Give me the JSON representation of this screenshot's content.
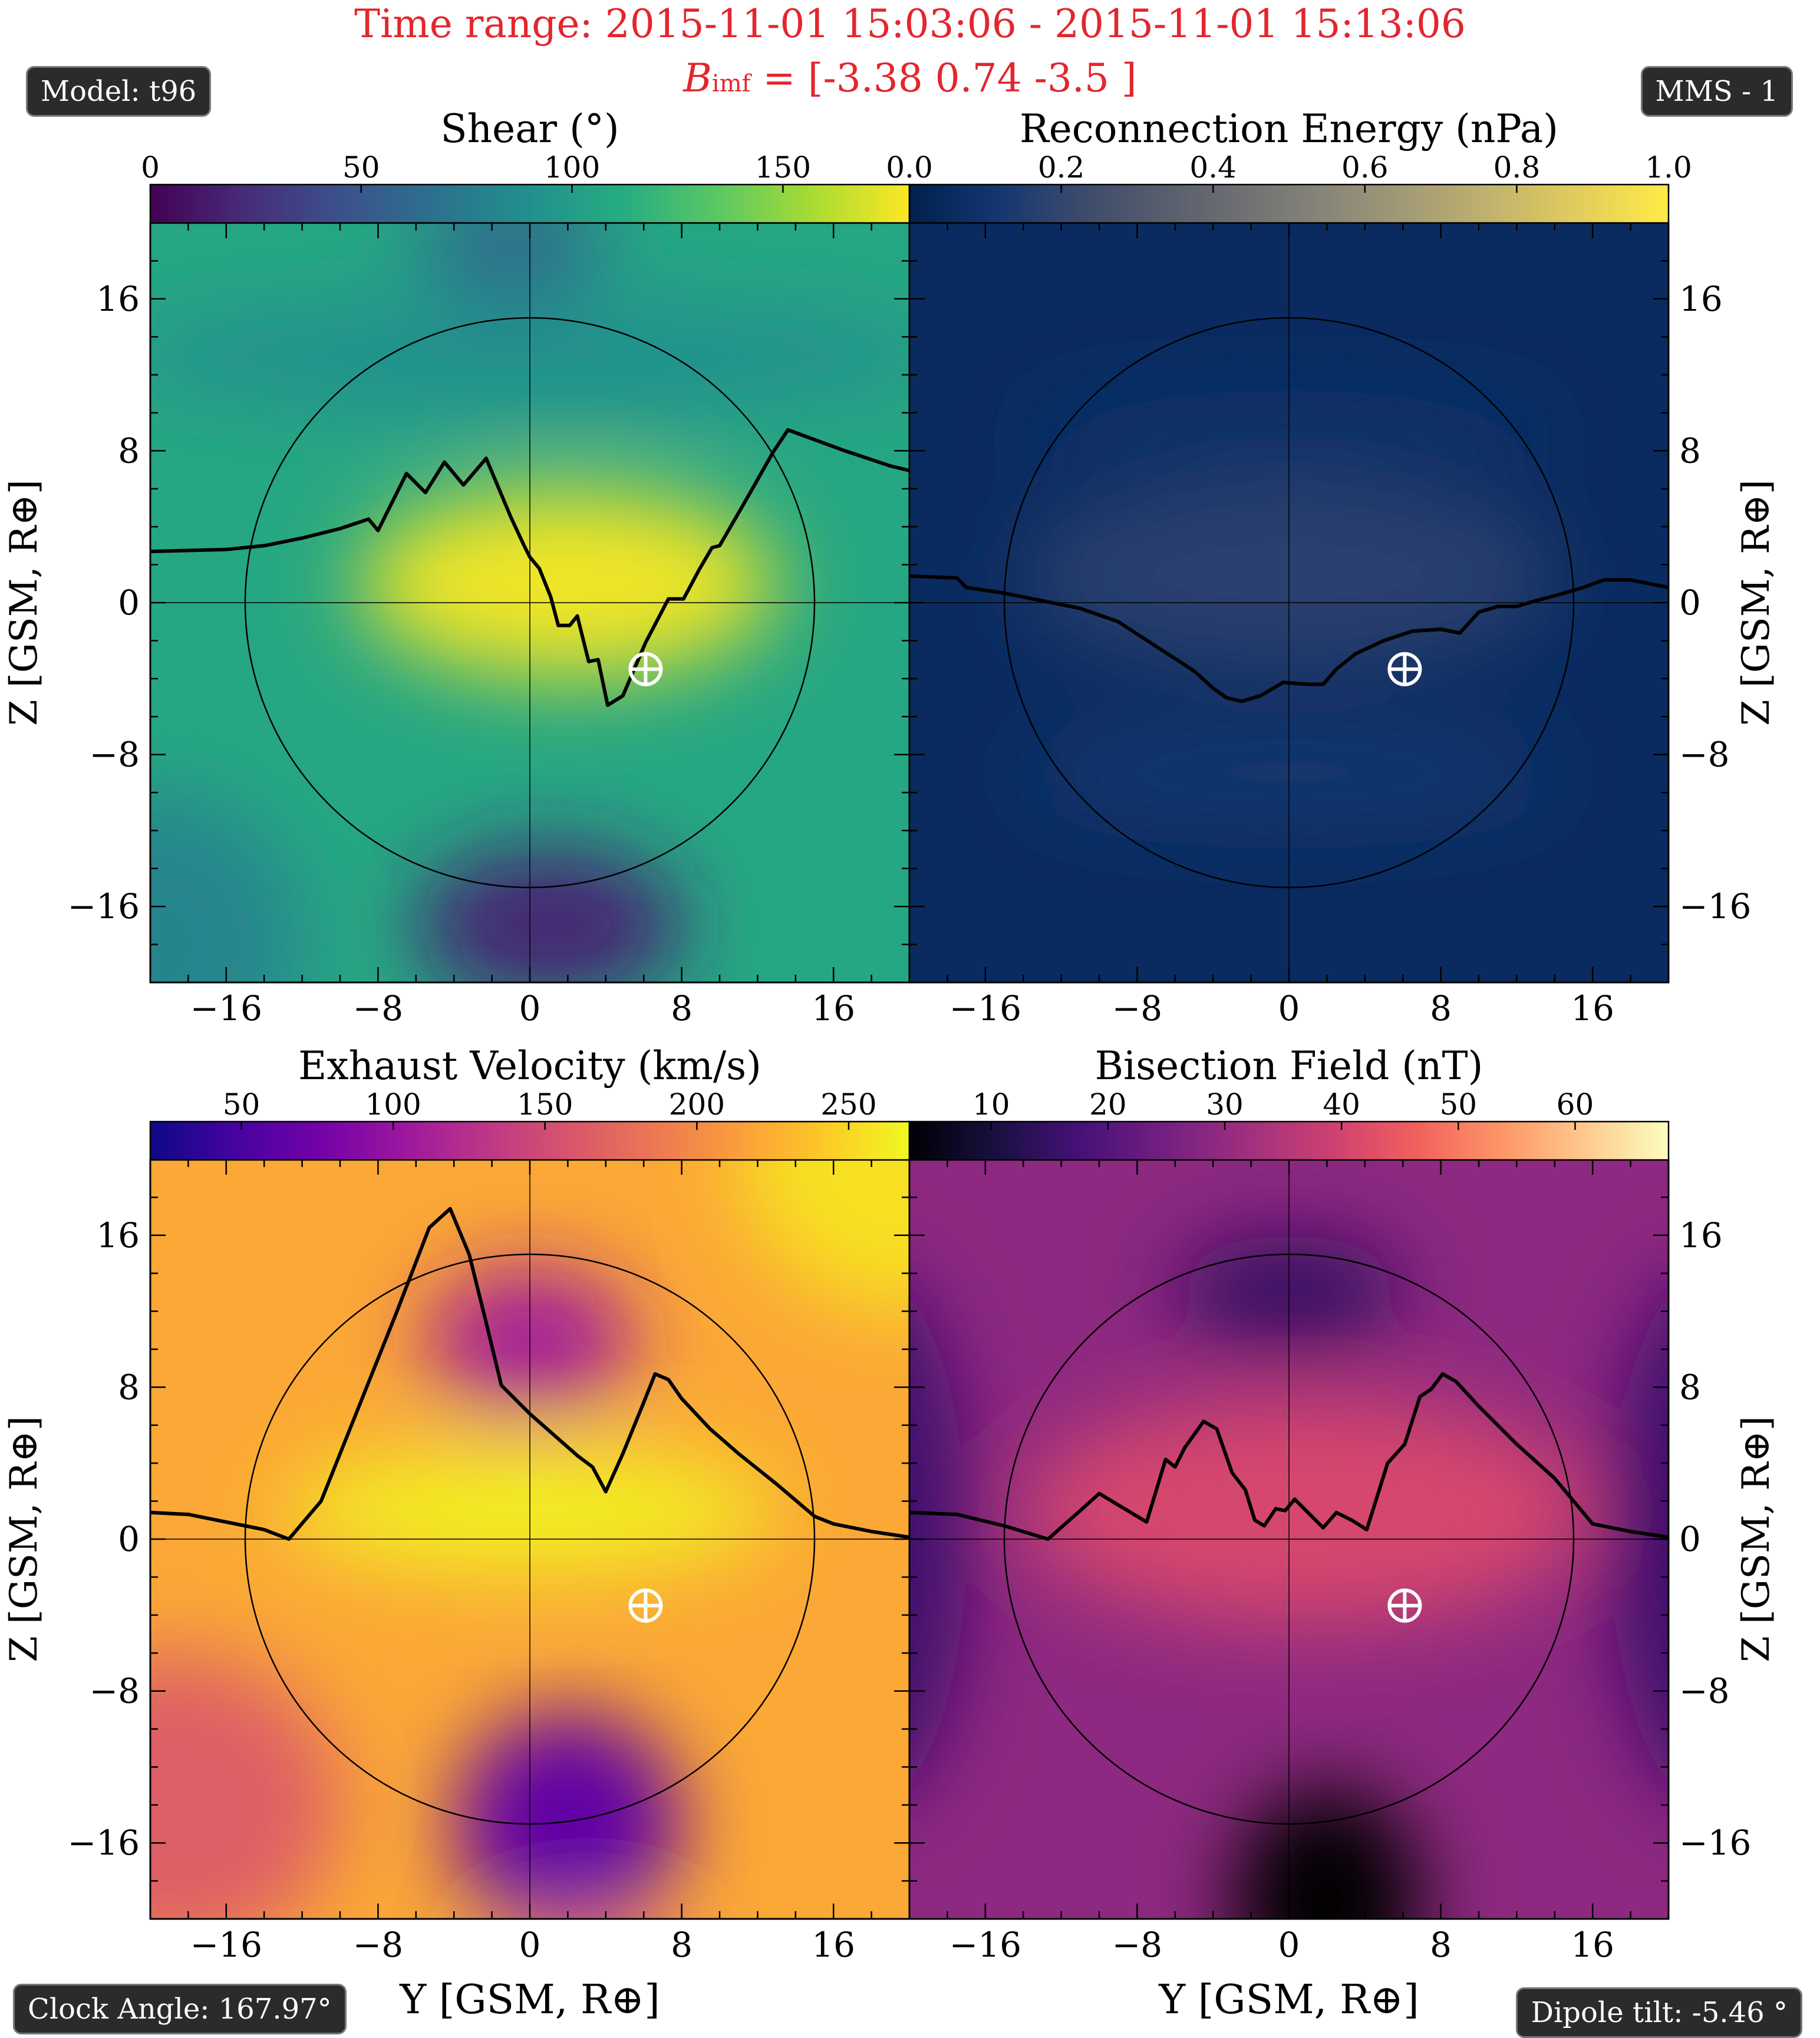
{
  "header": {
    "title_prefix": "Time range:",
    "time_start": "2015-11-01 15:03:06",
    "time_separator": "-",
    "time_end": "2015-11-01 15:13:06",
    "bimf_symbol": "B",
    "bimf_subscript": "imf",
    "bimf_value": "= [-3.38 0.74 -3.5 ]"
  },
  "badges": {
    "model": "Model: t96",
    "spacecraft": "MMS - 1",
    "clock_angle": "Clock Angle: 167.97°",
    "dipole_tilt": "Dipole tilt: -5.46 °"
  },
  "colors": {
    "title": "#e3262d",
    "badge_bg": "#2b2b2b",
    "line": "#000000",
    "marker": "#ffffff"
  },
  "chart_data": [
    {
      "type": "heatmap",
      "colorbar_label": "Shear (°)",
      "colormap": "viridis",
      "colorbar_range": [
        0,
        180
      ],
      "colorbar_ticks": [
        0,
        50,
        100,
        150
      ],
      "xlabel": "Y [GSM, R⊕]",
      "ylabel": "Z [GSM, R⊕]",
      "xlim": [
        -20,
        20
      ],
      "ylim": [
        -20,
        20
      ],
      "xticks": [
        -16,
        -8,
        0,
        8,
        16
      ],
      "yticks": [
        -16,
        -8,
        0,
        8,
        16
      ],
      "reference_circle_radius": 15,
      "spacecraft_marker": {
        "y": 6.1,
        "z": -3.5,
        "symbol": "⊕"
      },
      "reconnection_line": [
        [
          -20,
          2.7
        ],
        [
          -16,
          2.8
        ],
        [
          -14,
          3.0
        ],
        [
          -12,
          3.4
        ],
        [
          -10,
          3.9
        ],
        [
          -8.5,
          4.4
        ],
        [
          -8,
          3.8
        ],
        [
          -6.5,
          6.8
        ],
        [
          -5.5,
          5.8
        ],
        [
          -4.5,
          7.4
        ],
        [
          -3.5,
          6.2
        ],
        [
          -2.3,
          7.6
        ],
        [
          -1,
          4.5
        ],
        [
          -0.3,
          3.0
        ],
        [
          0,
          2.4
        ],
        [
          0.5,
          1.8
        ],
        [
          1.1,
          0.3
        ],
        [
          1.5,
          -1.2
        ],
        [
          2.1,
          -1.2
        ],
        [
          2.5,
          -0.7
        ],
        [
          3.1,
          -3.1
        ],
        [
          3.6,
          -3.0
        ],
        [
          4.1,
          -5.4
        ],
        [
          4.9,
          -4.9
        ],
        [
          6.1,
          -2.1
        ],
        [
          7.3,
          0.2
        ],
        [
          8.1,
          0.2
        ],
        [
          8.9,
          1.7
        ],
        [
          9.6,
          2.9
        ],
        [
          10,
          3.0
        ],
        [
          11.5,
          5.6
        ],
        [
          12.8,
          7.9
        ],
        [
          13.6,
          9.1
        ],
        [
          16.6,
          8.0
        ],
        [
          19,
          7.2
        ],
        [
          21.1,
          6.7
        ],
        [
          21.5,
          6.1
        ],
        [
          25,
          5.4
        ]
      ]
    },
    {
      "type": "heatmap",
      "colorbar_label": "Reconnection Energy (nPa)",
      "colormap": "cividis",
      "colorbar_range": [
        0.0,
        1.0
      ],
      "colorbar_ticks": [
        0.0,
        0.2,
        0.4,
        0.6,
        0.8,
        1.0
      ],
      "xlabel": "Y [GSM, R⊕]",
      "ylabel": "Z [GSM, R⊕]",
      "xlim": [
        -20,
        20
      ],
      "ylim": [
        -20,
        20
      ],
      "xticks": [
        -16,
        -8,
        0,
        8,
        16
      ],
      "yticks": [
        -16,
        -8,
        0,
        8,
        16
      ],
      "reference_circle_radius": 15,
      "spacecraft_marker": {
        "y": 6.1,
        "z": -3.5,
        "symbol": "⊕"
      },
      "reconnection_line": [
        [
          -20,
          1.4
        ],
        [
          -17.5,
          1.3
        ],
        [
          -17,
          0.8
        ],
        [
          -15,
          0.5
        ],
        [
          -13,
          0.1
        ],
        [
          -11,
          -0.3
        ],
        [
          -9,
          -1.0
        ],
        [
          -7,
          -2.3
        ],
        [
          -5,
          -3.6
        ],
        [
          -4,
          -4.5
        ],
        [
          -3.3,
          -5.0
        ],
        [
          -2.5,
          -5.2
        ],
        [
          -1.5,
          -4.9
        ],
        [
          -0.3,
          -4.2
        ],
        [
          1,
          -4.3
        ],
        [
          1.8,
          -4.3
        ],
        [
          2.5,
          -3.5
        ],
        [
          3.5,
          -2.7
        ],
        [
          5,
          -2.0
        ],
        [
          6.5,
          -1.5
        ],
        [
          8,
          -1.4
        ],
        [
          9,
          -1.6
        ],
        [
          10,
          -0.5
        ],
        [
          11,
          -0.2
        ],
        [
          12,
          -0.2
        ],
        [
          13,
          0.1
        ],
        [
          14.5,
          0.5
        ],
        [
          15.5,
          0.8
        ],
        [
          16.6,
          1.2
        ],
        [
          18,
          1.2
        ],
        [
          20,
          0.8
        ],
        [
          22,
          0.3
        ],
        [
          24,
          -0.2
        ],
        [
          25,
          -0.7
        ],
        [
          26,
          -0.7
        ]
      ]
    },
    {
      "type": "heatmap",
      "colorbar_label": "Exhaust Velocity (km/s)",
      "colormap": "plasma",
      "colorbar_range": [
        20,
        270
      ],
      "colorbar_ticks": [
        50,
        100,
        150,
        200,
        250
      ],
      "xlabel": "Y [GSM, R⊕]",
      "ylabel": "Z [GSM, R⊕]",
      "xlim": [
        -20,
        20
      ],
      "ylim": [
        -20,
        20
      ],
      "xticks": [
        -16,
        -8,
        0,
        8,
        16
      ],
      "yticks": [
        -16,
        -8,
        0,
        8,
        16
      ],
      "reference_circle_radius": 15,
      "spacecraft_marker": {
        "y": 6.1,
        "z": -3.5,
        "symbol": "⊕"
      },
      "reconnection_line": [
        [
          -20,
          1.4
        ],
        [
          -18,
          1.3
        ],
        [
          -16,
          0.9
        ],
        [
          -14,
          0.5
        ],
        [
          -12.7,
          0
        ],
        [
          -11,
          2.0
        ],
        [
          -9,
          7.0
        ],
        [
          -7,
          12.0
        ],
        [
          -5.3,
          16.4
        ],
        [
          -4.2,
          17.4
        ],
        [
          -3.2,
          15.0
        ],
        [
          -2.3,
          11.4
        ],
        [
          -1.5,
          8.1
        ],
        [
          0,
          6.6
        ],
        [
          2.5,
          4.4
        ],
        [
          3.3,
          3.8
        ],
        [
          4,
          2.5
        ],
        [
          4.9,
          4.5
        ],
        [
          6,
          7.2
        ],
        [
          6.6,
          8.7
        ],
        [
          7.3,
          8.4
        ],
        [
          8,
          7.4
        ],
        [
          9.5,
          5.8
        ],
        [
          11,
          4.5
        ],
        [
          13,
          2.9
        ],
        [
          15,
          1.2
        ],
        [
          16,
          0.8
        ],
        [
          18,
          0.4
        ],
        [
          20,
          0.1
        ],
        [
          22,
          -0.2
        ],
        [
          24,
          -0.5
        ],
        [
          26,
          -0.7
        ]
      ]
    },
    {
      "type": "heatmap",
      "colorbar_label": "Bisection Field (nT)",
      "colormap": "magma",
      "colorbar_range": [
        3,
        68
      ],
      "colorbar_ticks": [
        10,
        20,
        30,
        40,
        50,
        60
      ],
      "xlabel": "Y [GSM, R⊕]",
      "ylabel": "Z [GSM, R⊕]",
      "xlim": [
        -20,
        20
      ],
      "ylim": [
        -20,
        20
      ],
      "xticks": [
        -16,
        -8,
        0,
        8,
        16
      ],
      "yticks": [
        -16,
        -8,
        0,
        8,
        16
      ],
      "reference_circle_radius": 15,
      "spacecraft_marker": {
        "y": 6.1,
        "z": -3.5,
        "symbol": "⊕"
      },
      "reconnection_line": [
        [
          -20,
          1.4
        ],
        [
          -17.5,
          1.3
        ],
        [
          -15,
          0.7
        ],
        [
          -12.7,
          0
        ],
        [
          -11,
          1.5
        ],
        [
          -10,
          2.4
        ],
        [
          -8.5,
          1.5
        ],
        [
          -7.5,
          0.9
        ],
        [
          -6.5,
          4.2
        ],
        [
          -6,
          3.8
        ],
        [
          -5.5,
          4.8
        ],
        [
          -4.5,
          6.2
        ],
        [
          -3.8,
          5.8
        ],
        [
          -3,
          3.5
        ],
        [
          -2.3,
          2.6
        ],
        [
          -1.8,
          1.0
        ],
        [
          -1.3,
          0.7
        ],
        [
          -0.7,
          1.6
        ],
        [
          -0.2,
          1.5
        ],
        [
          0.3,
          2.1
        ],
        [
          1.1,
          1.3
        ],
        [
          1.8,
          0.6
        ],
        [
          2.5,
          1.4
        ],
        [
          3.3,
          1.0
        ],
        [
          4.1,
          0.5
        ],
        [
          5.2,
          4.0
        ],
        [
          6.1,
          5.0
        ],
        [
          6.9,
          7.5
        ],
        [
          7.5,
          7.9
        ],
        [
          8.1,
          8.7
        ],
        [
          8.8,
          8.3
        ],
        [
          10,
          7.0
        ],
        [
          12,
          5.0
        ],
        [
          14,
          3.2
        ],
        [
          16,
          0.8
        ],
        [
          18,
          0.4
        ],
        [
          20,
          0.1
        ],
        [
          22,
          -0.2
        ],
        [
          24,
          -0.6
        ],
        [
          26,
          -0.7
        ]
      ]
    }
  ]
}
